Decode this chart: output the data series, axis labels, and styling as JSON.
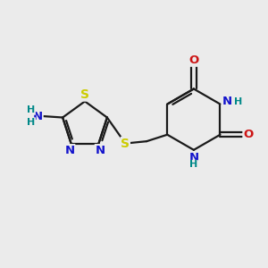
{
  "bg_color": "#ebebeb",
  "bond_color": "#1a1a1a",
  "atom_colors": {
    "N": "#1414cc",
    "O": "#cc1414",
    "S": "#cccc00",
    "H": "#008888"
  },
  "lw": 1.6,
  "fontsize": 9.5
}
